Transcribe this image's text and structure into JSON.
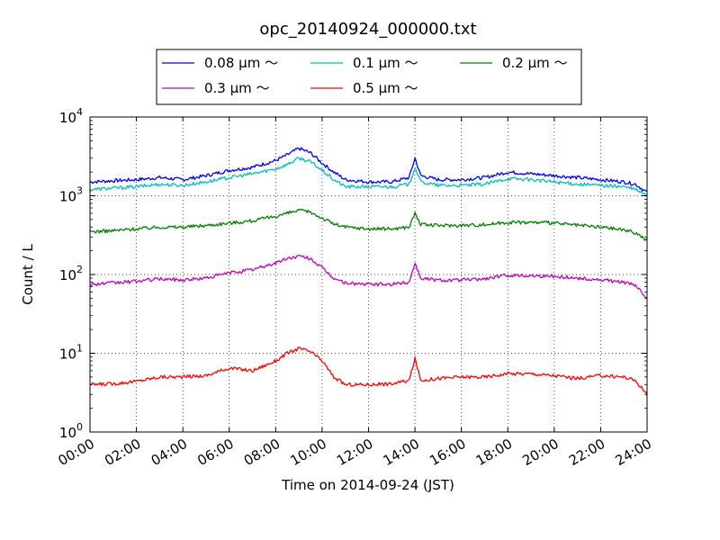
{
  "chart_data": {
    "type": "line",
    "title": "opc_20140924_000000.txt",
    "xlabel": "Time on 2014-09-24 (JST)",
    "ylabel": "Count / L",
    "xlim": [
      "00:00",
      "24:00"
    ],
    "ylim": [
      1,
      10000
    ],
    "yscale": "log",
    "grid": true,
    "legend_position": "top-center",
    "x_ticks": [
      "00:00",
      "02:00",
      "04:00",
      "06:00",
      "08:00",
      "10:00",
      "12:00",
      "14:00",
      "16:00",
      "18:00",
      "20:00",
      "22:00",
      "24:00"
    ],
    "y_ticks": [
      {
        "base": "10",
        "exp": "0"
      },
      {
        "base": "10",
        "exp": "1"
      },
      {
        "base": "10",
        "exp": "2"
      },
      {
        "base": "10",
        "exp": "3"
      },
      {
        "base": "10",
        "exp": "4"
      }
    ],
    "x": [
      "00:00",
      "01:00",
      "02:00",
      "03:00",
      "04:00",
      "05:00",
      "06:00",
      "07:00",
      "08:00",
      "08:30",
      "09:00",
      "09:30",
      "10:00",
      "10:30",
      "11:00",
      "12:00",
      "13:00",
      "13:45",
      "14:00",
      "14:15",
      "15:00",
      "16:00",
      "17:00",
      "18:00",
      "19:00",
      "20:00",
      "21:00",
      "22:00",
      "23:00",
      "23:30",
      "24:00"
    ],
    "series": [
      {
        "name": "0.08 μm ～",
        "color": "#0000ff",
        "values": [
          1500,
          1550,
          1600,
          1700,
          1600,
          1800,
          2100,
          2300,
          2800,
          3300,
          4000,
          3500,
          2600,
          2000,
          1600,
          1500,
          1500,
          1700,
          3000,
          1800,
          1600,
          1600,
          1700,
          2000,
          1900,
          1800,
          1700,
          1600,
          1500,
          1400,
          1100
        ]
      },
      {
        "name": "0.1 μm ～",
        "color": "#00bfbf",
        "values": [
          1200,
          1250,
          1300,
          1400,
          1350,
          1500,
          1700,
          1900,
          2200,
          2500,
          3000,
          2700,
          2100,
          1600,
          1300,
          1300,
          1300,
          1400,
          2300,
          1500,
          1350,
          1350,
          1400,
          1650,
          1600,
          1500,
          1400,
          1350,
          1300,
          1200,
          1000
        ]
      },
      {
        "name": "0.2 μm ～",
        "color": "#008000",
        "values": [
          350,
          360,
          380,
          400,
          400,
          420,
          450,
          480,
          550,
          600,
          650,
          620,
          520,
          440,
          400,
          380,
          380,
          400,
          600,
          430,
          420,
          420,
          430,
          460,
          460,
          450,
          420,
          400,
          370,
          340,
          270
        ]
      },
      {
        "name": "0.3 μm ～",
        "color": "#bf00bf",
        "values": [
          75,
          78,
          82,
          88,
          85,
          90,
          105,
          115,
          140,
          160,
          170,
          160,
          120,
          90,
          78,
          75,
          75,
          80,
          140,
          90,
          85,
          85,
          88,
          98,
          97,
          95,
          90,
          85,
          80,
          72,
          50
        ]
      },
      {
        "name": "0.5 μm ～",
        "color": "#ff0000",
        "values": [
          4,
          4.1,
          4.4,
          5,
          5,
          5.2,
          6.5,
          6,
          8,
          10,
          11.5,
          10.5,
          8,
          5,
          4,
          4,
          4.1,
          4.5,
          8.5,
          4.5,
          4.8,
          5,
          5,
          5.5,
          5.5,
          5.2,
          4.8,
          5.2,
          5,
          4.5,
          3
        ]
      }
    ]
  }
}
